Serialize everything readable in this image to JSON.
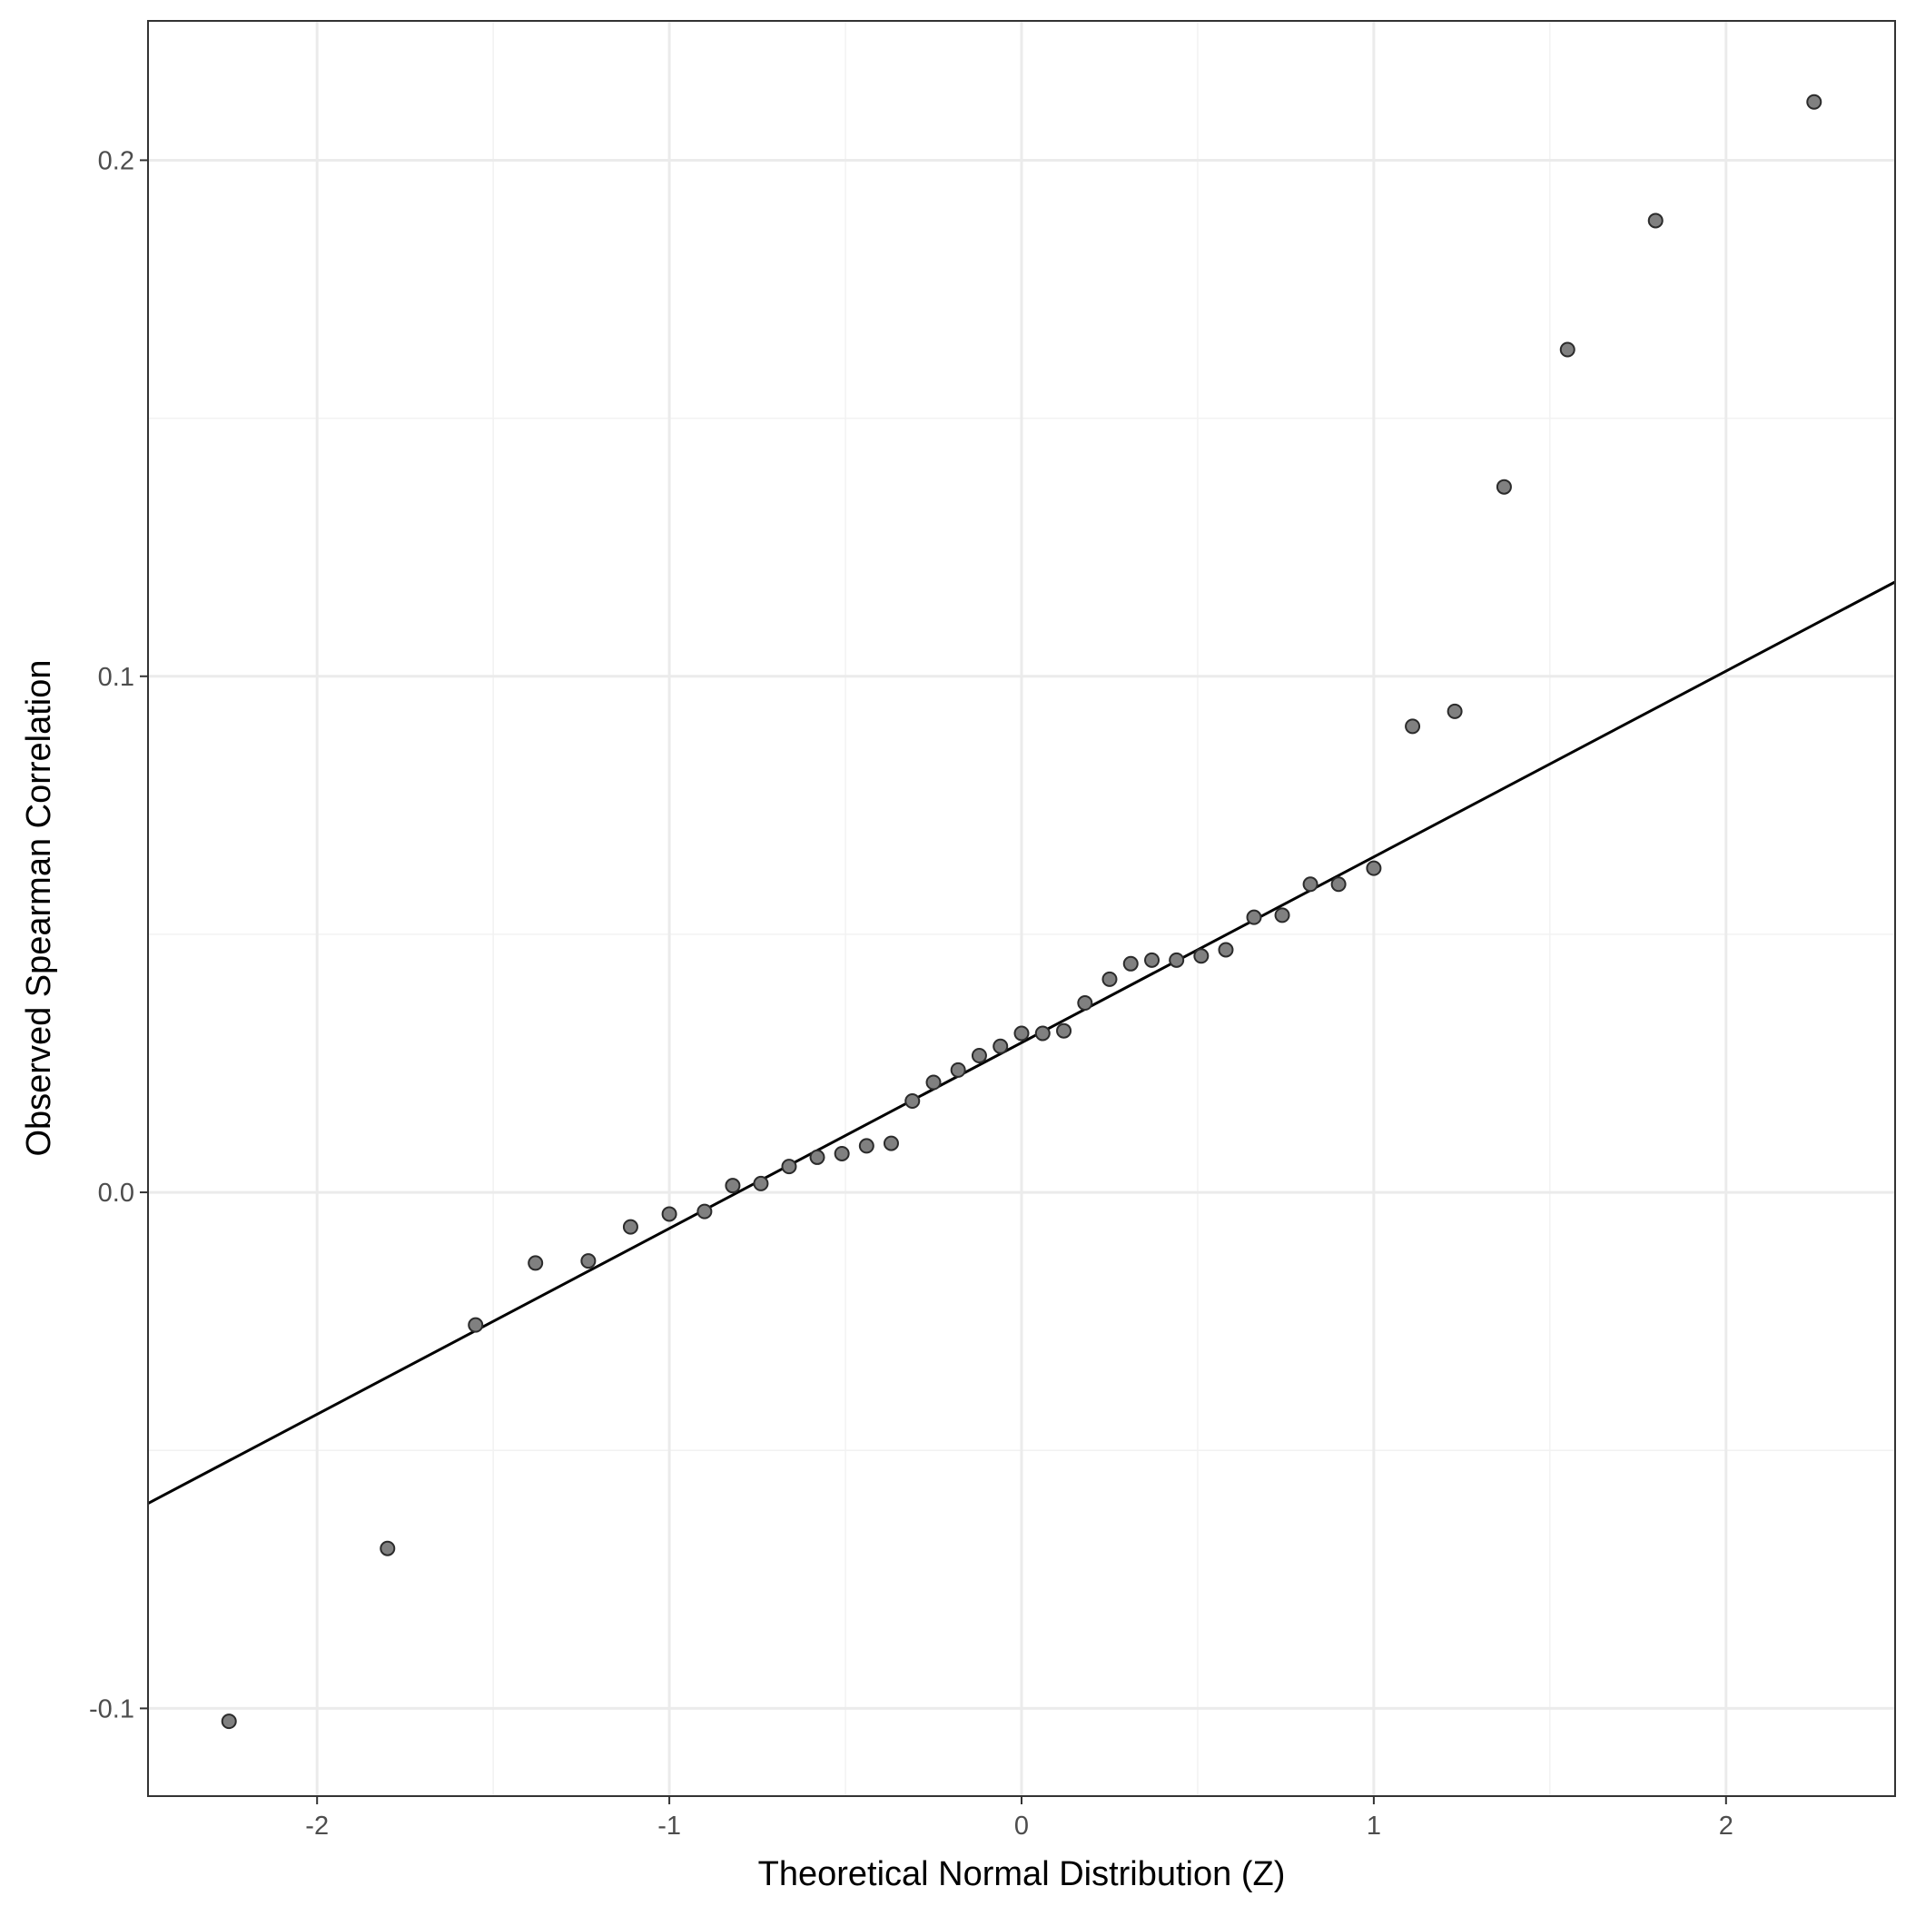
{
  "chart_data": {
    "type": "scatter",
    "title": "",
    "xlabel": "Theoretical Normal Distribution (Z)",
    "ylabel": "Observed Spearman Correlation",
    "xlim": [
      -2.48,
      2.48
    ],
    "ylim": [
      -0.117,
      0.227
    ],
    "x_ticks": [
      -2,
      -1,
      0,
      1,
      2
    ],
    "x_tick_labels": [
      "-2",
      "-1",
      "0",
      "1",
      "2"
    ],
    "y_ticks": [
      -0.1,
      0.0,
      0.1,
      0.2
    ],
    "y_tick_labels": [
      "-0.1",
      "0.0",
      "0.1",
      "0.2"
    ],
    "grid": true,
    "points": [
      {
        "x": -2.25,
        "y": -0.1025
      },
      {
        "x": -1.8,
        "y": -0.069
      },
      {
        "x": -1.55,
        "y": -0.0257
      },
      {
        "x": -1.38,
        "y": -0.0137
      },
      {
        "x": -1.23,
        "y": -0.0133
      },
      {
        "x": -1.11,
        "y": -0.0067
      },
      {
        "x": -1.0,
        "y": -0.0042
      },
      {
        "x": -0.9,
        "y": -0.0037
      },
      {
        "x": -0.82,
        "y": 0.0013
      },
      {
        "x": -0.74,
        "y": 0.0017
      },
      {
        "x": -0.66,
        "y": 0.005
      },
      {
        "x": -0.58,
        "y": 0.0068
      },
      {
        "x": -0.51,
        "y": 0.0075
      },
      {
        "x": -0.44,
        "y": 0.009
      },
      {
        "x": -0.37,
        "y": 0.0095
      },
      {
        "x": -0.31,
        "y": 0.0177
      },
      {
        "x": -0.25,
        "y": 0.0213
      },
      {
        "x": -0.18,
        "y": 0.0237
      },
      {
        "x": -0.12,
        "y": 0.0265
      },
      {
        "x": -0.06,
        "y": 0.0283
      },
      {
        "x": 0.0,
        "y": 0.0308
      },
      {
        "x": 0.06,
        "y": 0.0308
      },
      {
        "x": 0.12,
        "y": 0.0313
      },
      {
        "x": 0.18,
        "y": 0.0367
      },
      {
        "x": 0.25,
        "y": 0.0413
      },
      {
        "x": 0.31,
        "y": 0.0443
      },
      {
        "x": 0.37,
        "y": 0.045
      },
      {
        "x": 0.44,
        "y": 0.045
      },
      {
        "x": 0.51,
        "y": 0.0458
      },
      {
        "x": 0.58,
        "y": 0.047
      },
      {
        "x": 0.66,
        "y": 0.0533
      },
      {
        "x": 0.74,
        "y": 0.0537
      },
      {
        "x": 0.82,
        "y": 0.0597
      },
      {
        "x": 0.9,
        "y": 0.0597
      },
      {
        "x": 1.0,
        "y": 0.0628
      },
      {
        "x": 1.11,
        "y": 0.0903
      },
      {
        "x": 1.23,
        "y": 0.0932
      },
      {
        "x": 1.37,
        "y": 0.1367
      },
      {
        "x": 1.55,
        "y": 0.1633
      },
      {
        "x": 1.8,
        "y": 0.1883
      },
      {
        "x": 2.25,
        "y": 0.2113
      }
    ],
    "reference_line": {
      "intercept": 0.029,
      "slope": 0.036
    },
    "colors": {
      "points_fill": "#808080",
      "points_stroke": "#2b2b2b",
      "line": "#000000",
      "grid_major": "#ebebeb",
      "grid_minor": "#f2f2f2",
      "panel_border": "#333333",
      "tick_label": "#4d4d4d"
    }
  }
}
